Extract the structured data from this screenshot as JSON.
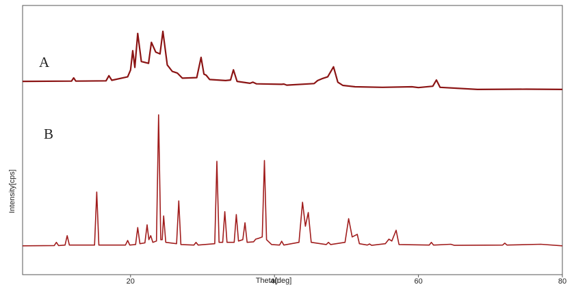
{
  "chart_data": {
    "type": "line",
    "x_label": "Theta[deg]",
    "y_label": "Intensity[cps]",
    "xlim": [
      5,
      80
    ],
    "xticks": [
      20,
      40,
      60,
      80
    ],
    "ylim": [
      0,
      100
    ],
    "series": [
      {
        "name": "A",
        "color": "#8b1414",
        "x": [
          5,
          11.8,
          12.1,
          12.4,
          16.6,
          17.0,
          17.4,
          19.6,
          20.0,
          20.3,
          20.6,
          21.0,
          21.5,
          22.5,
          22.9,
          23.5,
          24.1,
          24.5,
          25.1,
          25.8,
          26.5,
          27.2,
          29.2,
          29.8,
          30.2,
          30.5,
          31,
          33.2,
          33.9,
          34.3,
          34.8,
          36.6,
          37.0,
          37.5,
          41.0,
          41.3,
          41.7,
          45.5,
          46.0,
          46.6,
          47.4,
          48.2,
          48.8,
          49.5,
          51.2,
          55,
          59.1,
          60,
          62,
          62.5,
          63,
          68.2,
          75,
          80
        ],
        "values": [
          71.8,
          71.9,
          73.1,
          71.9,
          72,
          73.9,
          72.2,
          73.5,
          76,
          83.2,
          77,
          89.6,
          79.2,
          78.5,
          86.3,
          82.7,
          82,
          90.4,
          77.9,
          75.5,
          74.9,
          73,
          73.2,
          80.7,
          74.5,
          74.1,
          72.5,
          72.1,
          72.3,
          76.1,
          71.8,
          71.1,
          71.5,
          70.9,
          70.7,
          70.8,
          70.4,
          71,
          72.1,
          72.8,
          73.5,
          77.2,
          71.5,
          70.3,
          69.8,
          69.6,
          69.8,
          69.5,
          70,
          72.3,
          69.6,
          68.8,
          68.9,
          68.8
        ]
      },
      {
        "name": "B",
        "color": "#a01c1c",
        "x": [
          5,
          9.4,
          9.7,
          10.0,
          10.9,
          11.2,
          11.5,
          15.0,
          15.3,
          15.6,
          19.3,
          19.6,
          19.9,
          20.7,
          21.0,
          21.3,
          22.0,
          22.3,
          22.55,
          22.8,
          23.1,
          23.6,
          23.9,
          24.2,
          24.4,
          24.6,
          24.9,
          26.4,
          26.7,
          27.0,
          28.8,
          29.1,
          29.4,
          31.7,
          32.0,
          32.3,
          32.8,
          33.1,
          33.4,
          34.4,
          34.7,
          35.0,
          35.6,
          35.9,
          36.2,
          37.1,
          37.4,
          37.8,
          38.3,
          38.6,
          38.9,
          39.6,
          40.7,
          41.0,
          41.3,
          43.4,
          43.9,
          44.3,
          44.7,
          45.1,
          47.2,
          47.5,
          47.8,
          49.8,
          50.3,
          50.8,
          51.5,
          51.8,
          52.9,
          53.2,
          53.5,
          55.4,
          55.9,
          56.3,
          56.9,
          57.3,
          61.5,
          61.8,
          62.1,
          64.5,
          65,
          71.7,
          72.0,
          72.3,
          77,
          80
        ],
        "values": [
          10.7,
          10.8,
          12,
          10.8,
          11,
          14.5,
          11,
          11,
          30.7,
          11,
          11,
          12.7,
          11,
          11.2,
          17.5,
          11.5,
          11.8,
          18.5,
          13,
          14.5,
          12,
          12.5,
          59.4,
          13,
          13,
          21.8,
          12,
          11.5,
          27.4,
          11.2,
          11,
          12,
          11,
          11.5,
          42.1,
          12,
          12,
          23.4,
          12,
          12,
          22.3,
          12.5,
          13,
          19.3,
          12,
          12.2,
          13.2,
          13.5,
          14,
          42.4,
          13,
          11.2,
          11,
          12.4,
          11,
          12,
          26.9,
          18,
          23.1,
          12,
          11.2,
          12,
          11.2,
          12,
          20.8,
          14,
          15,
          11.5,
          11,
          11.4,
          10.9,
          11.5,
          13.2,
          12.5,
          16.5,
          11.2,
          11,
          12,
          11,
          11.3,
          10.9,
          11,
          11.7,
          11,
          11.3,
          10.7
        ]
      }
    ]
  }
}
